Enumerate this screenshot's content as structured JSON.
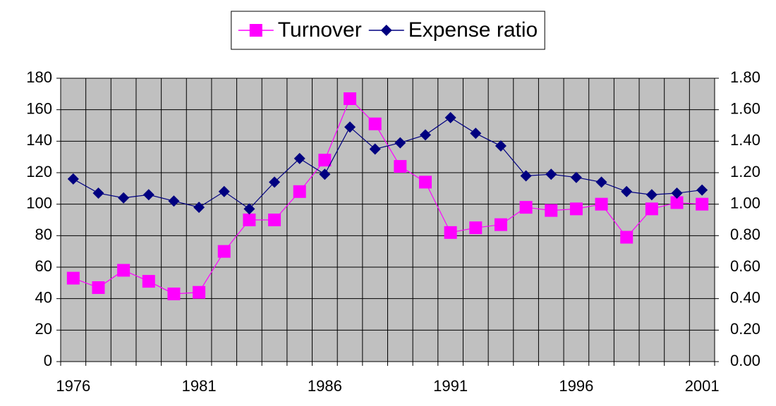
{
  "chart_data": {
    "type": "line",
    "categories": [
      "1976",
      null,
      null,
      null,
      null,
      "1981",
      null,
      null,
      null,
      null,
      "1986",
      null,
      null,
      null,
      null,
      "1991",
      null,
      null,
      null,
      null,
      "1996",
      null,
      null,
      null,
      null,
      "2001"
    ],
    "series": [
      {
        "name": "Turnover",
        "color": "#ff00ff",
        "marker": "square",
        "axis": "y",
        "values": [
          53,
          47,
          58,
          51,
          43,
          44,
          70,
          90,
          90,
          108,
          128,
          167,
          151,
          124,
          114,
          82,
          85,
          87,
          98,
          96,
          97,
          100,
          79,
          97,
          101,
          100
        ]
      },
      {
        "name": "Expense ratio",
        "color": "#000080",
        "marker": "diamond",
        "axis": "y2",
        "values": [
          1.16,
          1.07,
          1.04,
          1.06,
          1.02,
          0.98,
          1.08,
          0.97,
          1.14,
          1.29,
          1.19,
          1.49,
          1.35,
          1.39,
          1.44,
          1.55,
          1.45,
          1.37,
          1.18,
          1.19,
          1.17,
          1.14,
          1.08,
          1.06,
          1.07,
          1.09
        ]
      }
    ],
    "ylim": [
      0,
      180
    ],
    "yticks": [
      0,
      20,
      40,
      60,
      80,
      100,
      120,
      140,
      160,
      180
    ],
    "y2lim": [
      0,
      1.8
    ],
    "y2ticks": [
      {
        "value": 0,
        "label": "0.00"
      },
      {
        "value": 0.2,
        "label": "0.20"
      },
      {
        "value": 0.4,
        "label": "0.40"
      },
      {
        "value": 0.6,
        "label": "0.60"
      },
      {
        "value": 0.8,
        "label": "0.80"
      },
      {
        "value": 1,
        "label": "1.00"
      },
      {
        "value": 1.2,
        "label": "1.20"
      },
      {
        "value": 1.4,
        "label": "1.40"
      },
      {
        "value": 1.6,
        "label": "1.60"
      },
      {
        "value": 1.8,
        "label": "1.80"
      }
    ],
    "grid": true,
    "plot_background": "#c0c0c0",
    "legend": "top"
  }
}
